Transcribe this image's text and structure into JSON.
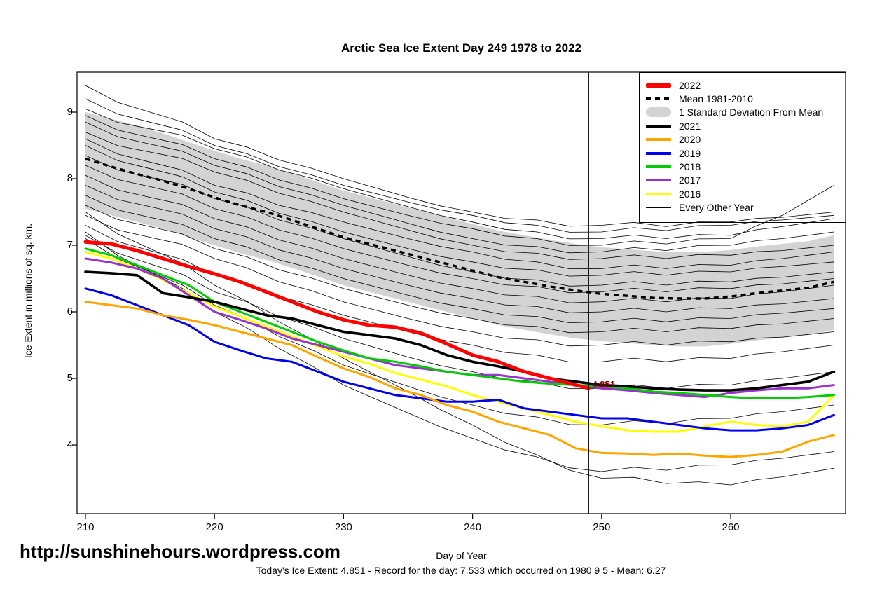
{
  "title": "Arctic Sea Ice Extent Day 249 1978 to 2022",
  "y_axis_label": "Ice Extent in millions of sq. km.",
  "x_axis_label": "Day of Year",
  "annotation": {
    "label": "4.851",
    "day": 249,
    "value": 4.851,
    "color": "#8B0000"
  },
  "footer": {
    "url": "http://sunshinehours.wordpress.com",
    "stats": "Today's Ice Extent: 4.851  - Record for the day: 7.533 which occurred on 1980 9 5  - Mean: 6.27"
  },
  "legend": {
    "items": [
      {
        "label": "2022",
        "color": "#FF0000",
        "kind": "thick"
      },
      {
        "label": "Mean 1981-2010",
        "color": "#000000",
        "kind": "dashed"
      },
      {
        "label": "1 Standard Deviation From Mean",
        "color": "#D3D3D3",
        "kind": "band"
      },
      {
        "label": "2021",
        "color": "#000000",
        "kind": "medium"
      },
      {
        "label": "2020",
        "color": "#FFA500",
        "kind": "medium"
      },
      {
        "label": "2019",
        "color": "#0000EE",
        "kind": "medium"
      },
      {
        "label": "2018",
        "color": "#00CC00",
        "kind": "medium"
      },
      {
        "label": "2017",
        "color": "#9A32CD",
        "kind": "medium"
      },
      {
        "label": "2016",
        "color": "#FFFF00",
        "kind": "medium"
      },
      {
        "label": "Every Other Year",
        "color": "#000000",
        "kind": "thin"
      }
    ]
  },
  "chart_data": {
    "type": "line",
    "title": "Arctic Sea Ice Extent Day 249 1978 to 2022",
    "xlabel": "Day of Year",
    "ylabel": "Ice Extent in millions of sq. km.",
    "x_ticks": [
      210,
      220,
      230,
      240,
      250,
      260
    ],
    "y_ticks": [
      4,
      5,
      6,
      7,
      8,
      9
    ],
    "xlim": [
      209.3,
      269.0
    ],
    "ylim": [
      2.97,
      9.6
    ],
    "vline_day": 249,
    "days": [
      210,
      212,
      214,
      216,
      218,
      220,
      222,
      224,
      226,
      228,
      230,
      232,
      234,
      236,
      238,
      240,
      242,
      244,
      246,
      248,
      250,
      252,
      254,
      256,
      258,
      260,
      262,
      264,
      266,
      268
    ],
    "band": {
      "name": "1 Standard Deviation From Mean",
      "color": "#D3D3D3",
      "upper": [
        9.0,
        8.9,
        8.8,
        8.68,
        8.55,
        8.42,
        8.3,
        8.2,
        8.08,
        7.95,
        7.82,
        7.72,
        7.62,
        7.52,
        7.42,
        7.32,
        7.22,
        7.15,
        7.08,
        7.02,
        6.97,
        6.94,
        6.91,
        6.9,
        6.9,
        6.93,
        6.98,
        7.02,
        7.06,
        7.15
      ],
      "lower": [
        7.55,
        7.45,
        7.35,
        7.25,
        7.12,
        7.0,
        6.88,
        6.78,
        6.66,
        6.53,
        6.4,
        6.3,
        6.2,
        6.1,
        6.0,
        5.9,
        5.8,
        5.73,
        5.66,
        5.6,
        5.56,
        5.53,
        5.5,
        5.48,
        5.48,
        5.52,
        5.57,
        5.61,
        5.65,
        5.73
      ]
    },
    "mean": {
      "name": "Mean 1981-2010",
      "values": [
        8.3,
        8.18,
        8.07,
        7.97,
        7.85,
        7.72,
        7.6,
        7.5,
        7.38,
        7.25,
        7.12,
        7.02,
        6.92,
        6.82,
        6.72,
        6.62,
        6.52,
        6.45,
        6.38,
        6.32,
        6.27,
        6.24,
        6.21,
        6.2,
        6.2,
        6.23,
        6.28,
        6.32,
        6.36,
        6.45
      ]
    },
    "series": [
      {
        "name": "2016",
        "color": "#FFFF00",
        "width": 3,
        "values": [
          6.9,
          6.8,
          6.65,
          6.48,
          6.28,
          6.08,
          5.93,
          5.78,
          5.63,
          5.48,
          5.33,
          5.22,
          5.08,
          4.98,
          4.88,
          4.75,
          4.65,
          4.55,
          4.45,
          4.35,
          4.28,
          4.22,
          4.2,
          4.2,
          4.28,
          4.35,
          4.3,
          4.28,
          4.35,
          4.75
        ]
      },
      {
        "name": "2017",
        "color": "#9A32CD",
        "width": 3,
        "values": [
          6.8,
          6.74,
          6.65,
          6.5,
          6.25,
          6.0,
          5.88,
          5.75,
          5.6,
          5.5,
          5.4,
          5.3,
          5.2,
          5.15,
          5.1,
          5.05,
          5.05,
          5.0,
          4.95,
          4.9,
          4.85,
          4.82,
          4.78,
          4.75,
          4.72,
          4.78,
          4.82,
          4.85,
          4.85,
          4.9
        ]
      },
      {
        "name": "2018",
        "color": "#00CC00",
        "width": 3,
        "values": [
          6.95,
          6.85,
          6.7,
          6.55,
          6.4,
          6.15,
          6.0,
          5.85,
          5.7,
          5.55,
          5.42,
          5.3,
          5.25,
          5.18,
          5.1,
          5.05,
          5.0,
          4.95,
          4.92,
          4.9,
          4.88,
          4.85,
          4.8,
          4.78,
          4.75,
          4.72,
          4.7,
          4.7,
          4.72,
          4.75
        ]
      },
      {
        "name": "2019",
        "color": "#0000EE",
        "width": 3,
        "values": [
          6.35,
          6.25,
          6.1,
          5.95,
          5.8,
          5.55,
          5.42,
          5.3,
          5.25,
          5.1,
          4.95,
          4.85,
          4.75,
          4.7,
          4.65,
          4.65,
          4.68,
          4.55,
          4.5,
          4.45,
          4.4,
          4.4,
          4.35,
          4.3,
          4.25,
          4.22,
          4.22,
          4.25,
          4.3,
          4.45
        ]
      },
      {
        "name": "2020",
        "color": "#FFA500",
        "width": 3,
        "values": [
          6.15,
          6.1,
          6.05,
          5.95,
          5.88,
          5.8,
          5.7,
          5.6,
          5.5,
          5.32,
          5.15,
          5.02,
          4.85,
          4.75,
          4.6,
          4.5,
          4.35,
          4.25,
          4.15,
          3.95,
          3.88,
          3.87,
          3.85,
          3.87,
          3.84,
          3.82,
          3.85,
          3.9,
          4.05,
          4.15
        ]
      },
      {
        "name": "2021",
        "color": "#000000",
        "width": 3.6,
        "values": [
          6.6,
          6.58,
          6.55,
          6.28,
          6.22,
          6.15,
          6.05,
          5.95,
          5.9,
          5.8,
          5.7,
          5.65,
          5.6,
          5.5,
          5.35,
          5.25,
          5.18,
          5.1,
          5.0,
          4.95,
          4.9,
          4.88,
          4.85,
          4.83,
          4.82,
          4.82,
          4.85,
          4.9,
          4.95,
          5.1
        ]
      },
      {
        "name": "2022",
        "color": "#FF0000",
        "width": 5,
        "x": [
          210,
          212,
          214,
          216,
          218,
          220,
          222,
          224,
          226,
          228,
          230,
          232,
          234,
          236,
          238,
          240,
          242,
          244,
          246,
          248,
          249
        ],
        "values": [
          7.05,
          7.02,
          6.92,
          6.8,
          6.68,
          6.57,
          6.45,
          6.3,
          6.15,
          6.0,
          5.88,
          5.8,
          5.77,
          5.68,
          5.52,
          5.35,
          5.25,
          5.1,
          5.0,
          4.9,
          4.851
        ]
      }
    ],
    "other_years": {
      "name": "Every Other Year",
      "x": [
        210,
        215,
        220,
        225,
        230,
        235,
        240,
        245,
        250,
        255,
        260,
        264,
        268
      ],
      "lines": [
        [
          9.4,
          9.0,
          8.6,
          8.28,
          8.0,
          7.72,
          7.5,
          7.38,
          7.3,
          7.28,
          7.35,
          7.42,
          7.5
        ],
        [
          9.2,
          8.85,
          8.5,
          8.18,
          7.9,
          7.65,
          7.45,
          7.3,
          7.2,
          7.22,
          7.3,
          7.38,
          7.45
        ],
        [
          9.05,
          8.75,
          8.45,
          8.13,
          7.85,
          7.58,
          7.35,
          7.2,
          7.1,
          7.1,
          7.15,
          7.28,
          7.4
        ],
        [
          8.95,
          8.62,
          8.3,
          7.98,
          7.7,
          7.45,
          7.25,
          7.1,
          7.0,
          7.02,
          7.1,
          7.45,
          7.9
        ],
        [
          8.85,
          8.52,
          8.2,
          7.88,
          7.6,
          7.33,
          7.1,
          6.98,
          6.9,
          6.92,
          7.0,
          7.1,
          7.2
        ],
        [
          8.7,
          8.4,
          8.1,
          7.78,
          7.5,
          7.23,
          7.0,
          6.88,
          6.8,
          6.8,
          6.85,
          6.92,
          7.0
        ],
        [
          8.6,
          8.25,
          7.9,
          7.6,
          7.35,
          7.1,
          6.9,
          6.75,
          6.65,
          6.65,
          6.7,
          6.8,
          6.9
        ],
        [
          8.5,
          8.15,
          7.8,
          7.48,
          7.2,
          6.95,
          6.75,
          6.63,
          6.55,
          6.55,
          6.6,
          6.68,
          6.75
        ],
        [
          8.35,
          8.02,
          7.7,
          7.38,
          7.1,
          6.83,
          6.6,
          6.48,
          6.4,
          6.4,
          6.45,
          6.52,
          6.6
        ],
        [
          8.2,
          7.88,
          7.55,
          7.23,
          6.95,
          6.7,
          6.5,
          6.38,
          6.3,
          6.3,
          6.35,
          6.42,
          6.5
        ],
        [
          8.05,
          7.72,
          7.4,
          7.08,
          6.8,
          6.55,
          6.35,
          6.23,
          6.15,
          6.15,
          6.2,
          6.3,
          6.4
        ],
        [
          7.9,
          7.58,
          7.25,
          6.93,
          6.65,
          6.4,
          6.2,
          6.08,
          6.0,
          6.0,
          6.05,
          6.12,
          6.2
        ],
        [
          7.75,
          7.42,
          7.1,
          6.78,
          6.5,
          6.25,
          6.05,
          5.93,
          5.85,
          5.85,
          5.9,
          5.98,
          6.05
        ],
        [
          7.6,
          7.28,
          6.95,
          6.63,
          6.35,
          6.1,
          5.9,
          5.78,
          5.7,
          5.7,
          5.75,
          5.82,
          5.9
        ],
        [
          7.45,
          7.12,
          6.8,
          6.45,
          6.15,
          5.9,
          5.7,
          5.58,
          5.5,
          5.5,
          5.55,
          5.62,
          5.7
        ],
        [
          7.3,
          6.92,
          6.55,
          6.23,
          5.95,
          5.7,
          5.5,
          5.35,
          5.25,
          5.25,
          5.3,
          5.4,
          5.5
        ],
        [
          7.15,
          6.72,
          6.3,
          5.93,
          5.6,
          5.32,
          5.1,
          4.95,
          4.85,
          4.85,
          4.9,
          5.0,
          5.1
        ],
        [
          7.1,
          6.6,
          6.1,
          5.63,
          5.2,
          4.88,
          4.6,
          4.42,
          4.3,
          4.32,
          4.4,
          4.5,
          4.6
        ],
        [
          7.2,
          6.6,
          6.0,
          5.45,
          4.9,
          4.48,
          4.1,
          3.82,
          3.6,
          3.62,
          3.7,
          3.8,
          3.9
        ],
        [
          7.5,
          6.95,
          6.4,
          5.85,
          5.3,
          4.8,
          4.3,
          3.85,
          3.5,
          3.42,
          3.4,
          3.52,
          3.65
        ]
      ]
    }
  }
}
